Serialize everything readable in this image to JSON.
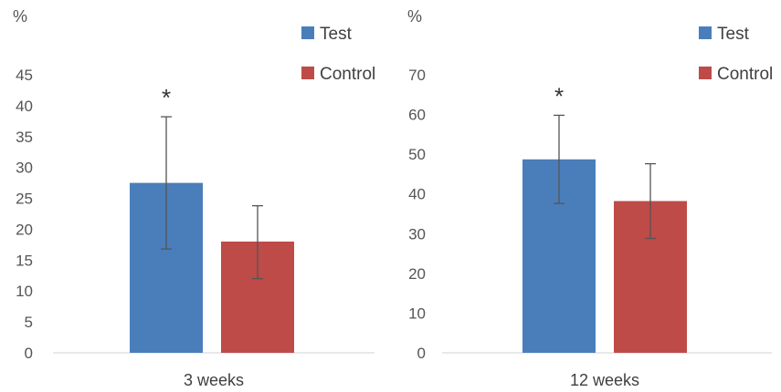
{
  "chart_data": [
    {
      "type": "bar",
      "ylabel": "%",
      "ylim": [
        0,
        45
      ],
      "ytick_step": 5,
      "yticks": [
        "0",
        "5",
        "10",
        "15",
        "20",
        "25",
        "30",
        "35",
        "40",
        "45"
      ],
      "categories": [
        "3 weeks"
      ],
      "series": [
        {
          "name": "Test",
          "color": "#4a7ebb",
          "values": [
            27.5
          ],
          "error_low": [
            16.8
          ],
          "error_high": [
            38.2
          ],
          "annotation": "*"
        },
        {
          "name": "Control",
          "color": "#be4b48",
          "values": [
            18
          ],
          "error_low": [
            12
          ],
          "error_high": [
            23.8
          ],
          "annotation": ""
        }
      ],
      "legend": "top-right",
      "grid": false
    },
    {
      "type": "bar",
      "ylabel": "%",
      "ylim": [
        0,
        70
      ],
      "ytick_step": 10,
      "yticks": [
        "0",
        "10",
        "20",
        "30",
        "40",
        "50",
        "60",
        "70"
      ],
      "categories": [
        "12 weeks"
      ],
      "series": [
        {
          "name": "Test",
          "color": "#4a7ebb",
          "values": [
            48.7
          ],
          "error_low": [
            37.6
          ],
          "error_high": [
            59.8
          ],
          "annotation": "*"
        },
        {
          "name": "Control",
          "color": "#be4b48",
          "values": [
            38.2
          ],
          "error_low": [
            28.8
          ],
          "error_high": [
            47.6
          ],
          "annotation": ""
        }
      ],
      "legend": "top-right",
      "grid": false
    }
  ]
}
